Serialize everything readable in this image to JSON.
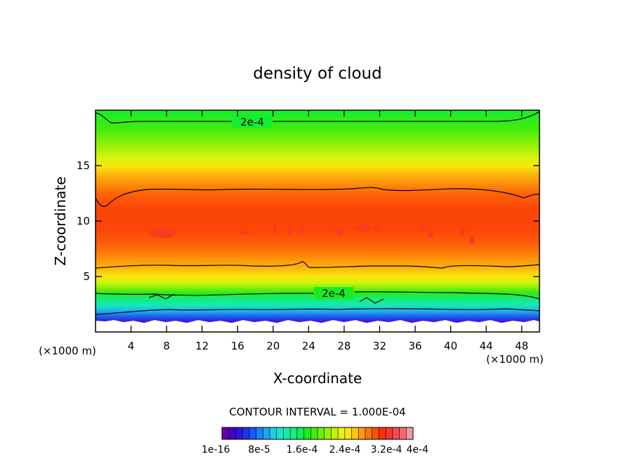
{
  "chart_data": {
    "type": "heatmap",
    "title": "density of cloud",
    "xlabel": "X-coordinate",
    "ylabel": "Z-coordinate",
    "x_unit": "(×1000 m)",
    "y_unit": "(×1000 m)",
    "xlim": [
      0,
      50
    ],
    "ylim": [
      0,
      20
    ],
    "x_ticks": [
      4,
      8,
      12,
      16,
      20,
      24,
      28,
      32,
      36,
      40,
      44,
      48
    ],
    "y_ticks": [
      5,
      10,
      15
    ],
    "contour_interval_text": "CONTOUR INTERVAL = 1.000E-04",
    "contour_label": "2e-4",
    "contour_lines": [
      {
        "level": "2e-4",
        "z_edge": 19.5,
        "z_center": 18.8
      },
      {
        "level": "3e-4",
        "z_edge": 11.2,
        "z_center": 12.7
      },
      {
        "level": "3e-4",
        "z_edge": 5.7,
        "z_center": 5.8
      },
      {
        "level": "2e-4",
        "z_edge": 3.4,
        "z_center": 3.5
      },
      {
        "level": "1e-4",
        "z_edge": 1.9,
        "z_center": 1.9
      }
    ],
    "colorbar": {
      "colors": [
        "#6a00a8",
        "#4b00c8",
        "#2e16d8",
        "#1f33ee",
        "#1b57f5",
        "#1c7ff5",
        "#1ea6f0",
        "#1dcde8",
        "#18e4c8",
        "#14ecaa",
        "#10ee84",
        "#12ee55",
        "#1ceb22",
        "#42ec0e",
        "#6aee0a",
        "#96f00a",
        "#c0f20a",
        "#e8f50c",
        "#fbe60c",
        "#fcc40c",
        "#fc9c0a",
        "#fc7608",
        "#fc5008",
        "#fc3006",
        "#f83430",
        "#f44a4e",
        "#f46872",
        "#f49a9a"
      ],
      "labels": [
        "1e-16",
        "8e-5",
        "1.6e-4",
        "2.4e-4",
        "3.2e-4",
        "4e-4"
      ]
    }
  }
}
